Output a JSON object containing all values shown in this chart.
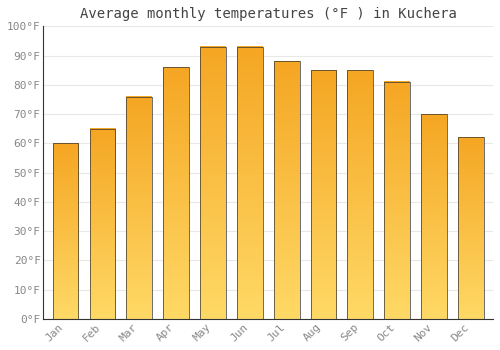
{
  "title": "Average monthly temperatures (°F ) in Kuchera",
  "months": [
    "Jan",
    "Feb",
    "Mar",
    "Apr",
    "May",
    "Jun",
    "Jul",
    "Aug",
    "Sep",
    "Oct",
    "Nov",
    "Dec"
  ],
  "values": [
    60,
    65,
    76,
    86,
    93,
    93,
    88,
    85,
    85,
    81,
    70,
    62
  ],
  "bar_color_main": "#F5A623",
  "bar_color_light": "#FFD966",
  "bar_color_dark": "#E08010",
  "bar_edge_color": "#333333",
  "ylim": [
    0,
    100
  ],
  "yticks": [
    0,
    10,
    20,
    30,
    40,
    50,
    60,
    70,
    80,
    90,
    100
  ],
  "ytick_labels": [
    "0°F",
    "10°F",
    "20°F",
    "30°F",
    "40°F",
    "50°F",
    "60°F",
    "70°F",
    "80°F",
    "90°F",
    "100°F"
  ],
  "background_color": "#ffffff",
  "grid_color": "#e8e8e8",
  "title_fontsize": 10,
  "tick_fontsize": 8,
  "bar_width": 0.7
}
